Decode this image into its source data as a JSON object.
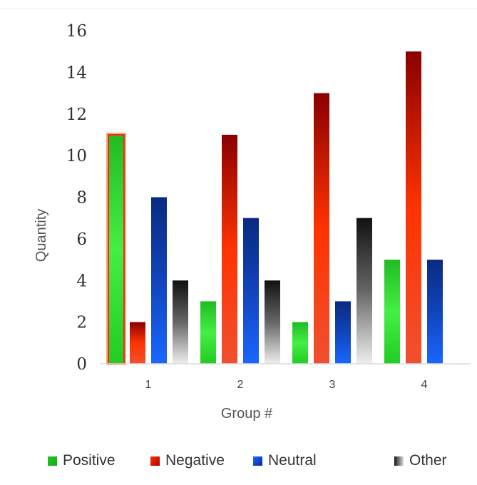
{
  "chart_data": {
    "type": "bar",
    "categories": [
      "1",
      "2",
      "3",
      "4"
    ],
    "series": [
      {
        "name": "Positive",
        "values": [
          11,
          3,
          2,
          5
        ],
        "color": "#22cc22"
      },
      {
        "name": "Negative",
        "values": [
          2,
          11,
          13,
          15
        ],
        "color": "#dd2200"
      },
      {
        "name": "Neutral",
        "values": [
          8,
          7,
          3,
          5
        ],
        "color": "#1144bb"
      },
      {
        "name": "Other",
        "values": [
          4,
          4,
          7,
          0
        ],
        "color": "#333333"
      }
    ],
    "title": "",
    "xlabel": "Group #",
    "ylabel": "Quantity",
    "ylim": [
      0,
      16
    ],
    "yticks": [
      "0",
      "2",
      "4",
      "6",
      "8",
      "10",
      "12",
      "14",
      "16"
    ],
    "grid": false,
    "legend_position": "bottom",
    "highlight": {
      "series": "Positive",
      "category": "1"
    }
  }
}
